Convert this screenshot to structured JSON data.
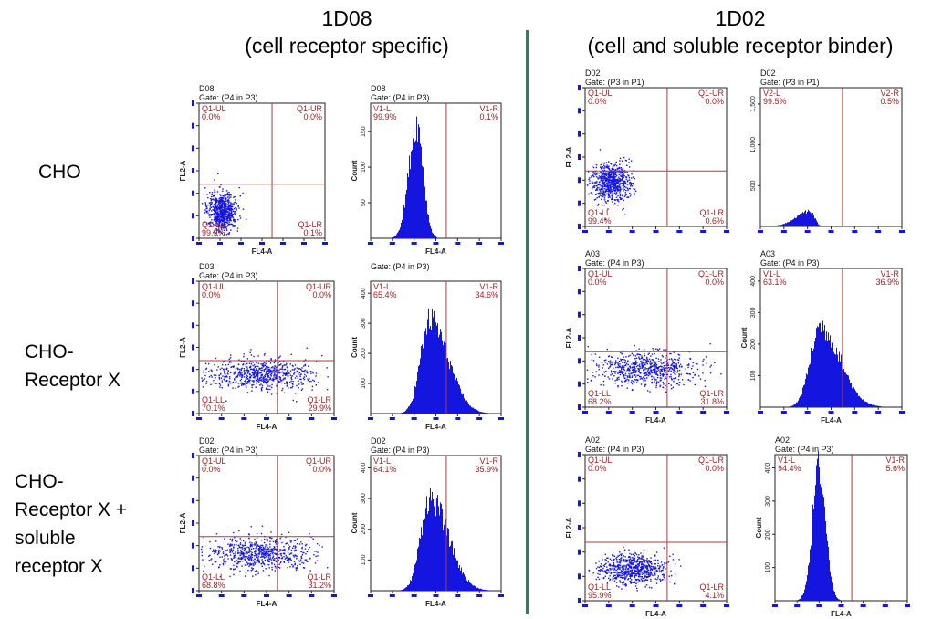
{
  "columns": [
    {
      "name": "1D08",
      "subtitle": "(cell receptor specific)"
    },
    {
      "name": "1D02",
      "subtitle": "(cell and soluble receptor binder)"
    }
  ],
  "rows": [
    {
      "label_lines": [
        "CHO"
      ]
    },
    {
      "label_lines": [
        "CHO-",
        "Receptor X"
      ]
    },
    {
      "label_lines": [
        "CHO-",
        "Receptor X +",
        "soluble",
        "receptor X"
      ]
    }
  ],
  "colors": {
    "points": "#1515e0",
    "gates": "#b03a3a",
    "divider": "#3a7a5a",
    "gate_text": "#a02020"
  },
  "chart_data": [
    {
      "type": "scatter",
      "column": "1D08",
      "row": "CHO",
      "sample": "D08",
      "gate": "Gate: (P4 in P3)",
      "xlabel": "FL4-A",
      "ylabel": "FL2-A",
      "quadrants": {
        "Q1-UL": "0.0%",
        "Q1-UR": "0.0%",
        "Q1-LL": "99.9%",
        "Q1-LR": "0.1%"
      },
      "cluster": {
        "center_x_frac": 0.18,
        "center_y_frac": 0.8,
        "spread_x": 0.06,
        "spread_y": 0.07
      }
    },
    {
      "type": "histogram",
      "column": "1D08",
      "row": "CHO",
      "sample": "D08",
      "gate": "Gate: (P4 in P3)",
      "xlabel": "FL4-A",
      "ylabel": "Count",
      "yticks": [
        "50",
        "100",
        "150"
      ],
      "ymax": 190,
      "regions": {
        "V1-L": "99.9%",
        "V1-R": "0.1%"
      },
      "peak": {
        "center_frac": 0.35,
        "height": 160,
        "width_left": 0.06,
        "width_right": 0.05
      }
    },
    {
      "type": "scatter",
      "column": "1D08",
      "row": "CHO-Receptor X",
      "sample": "D03",
      "gate": "Gate: (P4 in P3)",
      "xlabel": "FL4-A",
      "ylabel": "FL2-A",
      "quadrants": {
        "Q1-UL": "0.0%",
        "Q1-UR": "0.0%",
        "Q1-LL": "70.1%",
        "Q1-LR": "29.9%"
      },
      "cluster": {
        "center_x_frac": 0.45,
        "center_y_frac": 0.7,
        "spread_x": 0.2,
        "spread_y": 0.06
      }
    },
    {
      "type": "histogram",
      "column": "1D08",
      "row": "CHO-Receptor X",
      "sample": "",
      "gate": "Gate: (P4 in P3)",
      "xlabel": "FL4-A",
      "ylabel": "Count",
      "yticks": [
        "100",
        "200",
        "300",
        "400"
      ],
      "ymax": 440,
      "regions": {
        "V1-L": "65.4%",
        "V1-R": "34.6%"
      },
      "peak": {
        "center_frac": 0.45,
        "height": 310,
        "width_left": 0.07,
        "width_right": 0.14
      }
    },
    {
      "type": "scatter",
      "column": "1D08",
      "row": "CHO-Receptor X + soluble receptor X",
      "sample": "D02",
      "gate": "Gate: (P4 in P3)",
      "xlabel": "FL4-A",
      "ylabel": "FL2-A",
      "quadrants": {
        "Q1-UL": "0.0%",
        "Q1-UR": "0.0%",
        "Q1-LL": "68.8%",
        "Q1-LR": "31.2%"
      },
      "cluster": {
        "center_x_frac": 0.45,
        "center_y_frac": 0.72,
        "spread_x": 0.2,
        "spread_y": 0.06
      }
    },
    {
      "type": "histogram",
      "column": "1D08",
      "row": "CHO-Receptor X + soluble receptor X",
      "sample": "D02",
      "gate": "Gate: (P4 in P3)",
      "xlabel": "FL4-A",
      "ylabel": "Count",
      "yticks": [
        "100",
        "200",
        "300",
        "400"
      ],
      "ymax": 440,
      "regions": {
        "V1-L": "64.1%",
        "V1-R": "35.9%"
      },
      "peak": {
        "center_frac": 0.45,
        "height": 300,
        "width_left": 0.07,
        "width_right": 0.14
      }
    },
    {
      "type": "scatter",
      "column": "1D02",
      "row": "CHO",
      "sample": "D02",
      "gate": "Gate: (P3 in P1)",
      "xlabel": "",
      "ylabel": "FL2-A",
      "quadrants": {
        "Q1-UL": "0.0%",
        "Q1-UR": "0.0%",
        "Q1-LL": "99.4%",
        "Q1-LR": "0.6%"
      },
      "cluster": {
        "center_x_frac": 0.18,
        "center_y_frac": 0.68,
        "spread_x": 0.07,
        "spread_y": 0.07
      }
    },
    {
      "type": "histogram",
      "column": "1D02",
      "row": "CHO",
      "sample": "D02",
      "gate": "Gate: (P3 in P1)",
      "xlabel": "",
      "ylabel": "",
      "yticks": [
        "500",
        "1,000",
        "1,500"
      ],
      "ymax": 1700,
      "regions": {
        "V2-L": "99.5%",
        "V2-R": "0.5%"
      },
      "peak": {
        "center_frac": 0.35,
        "height": 190,
        "width_left": 0.1,
        "width_right": 0.03
      }
    },
    {
      "type": "scatter",
      "column": "1D02",
      "row": "CHO-Receptor X",
      "sample": "A03",
      "gate": "Gate: (P4 in P3)",
      "xlabel": "FL4-A",
      "ylabel": "FL2-A",
      "quadrants": {
        "Q1-UL": "0.0%",
        "Q1-UR": "0.0%",
        "Q1-LL": "68.2%",
        "Q1-LR": "31.8%"
      },
      "cluster": {
        "center_x_frac": 0.42,
        "center_y_frac": 0.72,
        "spread_x": 0.18,
        "spread_y": 0.06
      }
    },
    {
      "type": "histogram",
      "column": "1D02",
      "row": "CHO-Receptor X",
      "sample": "A03",
      "gate": "Gate: (P4 in P3)",
      "xlabel": "FL4-A",
      "ylabel": "Count",
      "yticks": [
        "100",
        "200",
        "300",
        "400"
      ],
      "ymax": 440,
      "regions": {
        "V1-L": "63.1%",
        "V1-R": "36.9%"
      },
      "peak": {
        "center_frac": 0.42,
        "height": 255,
        "width_left": 0.07,
        "width_right": 0.14
      }
    },
    {
      "type": "scatter",
      "column": "1D02",
      "row": "CHO-Receptor X + soluble receptor X",
      "sample": "A02",
      "gate": "Gate: (P4 in P3)",
      "xlabel": "FL4-A",
      "ylabel": "FL2-A",
      "quadrants": {
        "Q1-UL": "0.0%",
        "Q1-UR": "0.0%",
        "Q1-LL": "95.9%",
        "Q1-LR": "4.1%"
      },
      "cluster": {
        "center_x_frac": 0.33,
        "center_y_frac": 0.78,
        "spread_x": 0.12,
        "spread_y": 0.05
      }
    },
    {
      "type": "histogram",
      "column": "1D02",
      "row": "CHO-Receptor X + soluble receptor X",
      "sample": "A02",
      "gate": "Gate: (P4 in P3)",
      "xlabel": "FL4-A",
      "ylabel": "Count",
      "yticks": [
        "100",
        "200",
        "300",
        "400"
      ],
      "ymax": 440,
      "regions": {
        "V1-L": "94.4%",
        "V1-R": "5.6%"
      },
      "peak": {
        "center_frac": 0.33,
        "height": 400,
        "width_left": 0.05,
        "width_right": 0.05
      }
    }
  ]
}
